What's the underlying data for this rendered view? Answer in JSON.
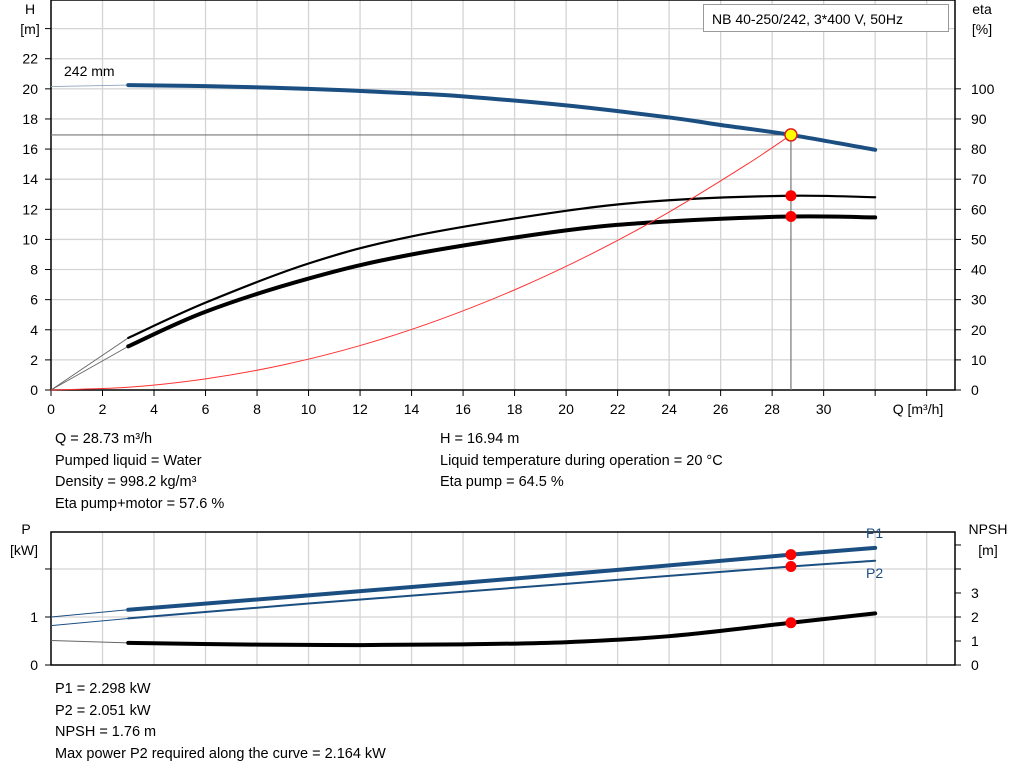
{
  "chart_data": [
    {
      "type": "line",
      "title": "NB 40-250/242, 3*400 V, 50Hz",
      "xlabel": "Q [m³/h]",
      "ylabel": "H\n[m]",
      "ylabel_parts": [
        "H",
        "[m]"
      ],
      "y2label_parts": [
        "eta",
        "[%]"
      ],
      "xlim": [
        0,
        35.1
      ],
      "ylim": [
        0,
        25.9
      ],
      "y2lim": [
        0,
        129.5
      ],
      "x_ticks": [
        0,
        2,
        4,
        6,
        8,
        10,
        12,
        14,
        16,
        18,
        20,
        22,
        24,
        26,
        28,
        30
      ],
      "y_ticks": [
        0,
        2,
        4,
        6,
        8,
        10,
        12,
        14,
        16,
        18,
        20,
        22
      ],
      "y2_ticks": [
        0,
        10,
        20,
        30,
        40,
        50,
        60,
        70,
        80,
        90,
        100
      ],
      "grid": true,
      "annotation": "242 mm",
      "series": [
        {
          "role": "head",
          "axis": "H",
          "color": "#1b4f82",
          "x": [
            3,
            6,
            10,
            14,
            16,
            20,
            24,
            26,
            28.73,
            32
          ],
          "y": [
            20.25,
            20.18,
            20.0,
            19.7,
            19.5,
            18.9,
            18.1,
            17.6,
            16.94,
            15.95
          ],
          "ext_x": [
            0,
            3
          ],
          "ext_y": [
            20.15,
            20.25
          ]
        },
        {
          "role": "eta-pump",
          "axis": "eta",
          "color": "#000000",
          "x": [
            3,
            6,
            10,
            14,
            20,
            24,
            28.73,
            32
          ],
          "y": [
            17.3,
            29,
            42,
            51,
            59.5,
            63,
            64.5,
            64
          ],
          "ext_x": [
            0,
            3
          ],
          "ext_y": [
            0,
            17.3
          ]
        },
        {
          "role": "eta-pump-motor",
          "axis": "eta",
          "color": "#000000",
          "x": [
            3,
            6,
            10,
            14,
            20,
            24,
            28.73,
            32
          ],
          "y": [
            14.5,
            26,
            37,
            45,
            53,
            56,
            57.6,
            57.3
          ],
          "ext_x": [
            0,
            3
          ],
          "ext_y": [
            0,
            14.5
          ]
        },
        {
          "role": "system-curve",
          "axis": "H",
          "color": "#ff3030",
          "x": [
            0,
            3,
            6,
            9,
            12,
            15,
            18,
            21,
            24,
            27,
            28.73
          ],
          "y": [
            0,
            0.18,
            0.74,
            1.66,
            2.95,
            4.62,
            6.65,
            9.05,
            11.82,
            14.96,
            16.94
          ]
        }
      ],
      "duty_point": {
        "Q": 28.73,
        "H": 16.94,
        "eta_pump": 64.5,
        "eta_pump_motor": 57.6,
        "color": "#ffff00"
      }
    },
    {
      "type": "line",
      "ylabel_parts": [
        "P",
        "[kW]"
      ],
      "y2label_parts": [
        "NPSH",
        "[m]"
      ],
      "xlim": [
        0,
        35.1
      ],
      "ylim": [
        0,
        2.77
      ],
      "y2lim": [
        0,
        5.54
      ],
      "y_ticks": [
        0,
        1,
        2
      ],
      "y_tick_labels": [
        "0",
        "1",
        ""
      ],
      "y2_ticks": [
        0,
        1,
        2,
        3,
        4,
        5
      ],
      "y2_tick_labels": [
        "0",
        "1",
        "2",
        "3",
        "",
        ""
      ],
      "grid": true,
      "series": [
        {
          "name": "P1",
          "axis": "P",
          "color": "#1b4f82",
          "x": [
            3,
            10,
            20,
            28.73,
            32
          ],
          "y": [
            1.15,
            1.45,
            1.89,
            2.298,
            2.44
          ],
          "ext_x": [
            0,
            3
          ],
          "ext_y": [
            1.0,
            1.15
          ]
        },
        {
          "name": "P2",
          "axis": "P",
          "color": "#1b4f82",
          "x": [
            3,
            10,
            20,
            28.73,
            32
          ],
          "y": [
            0.97,
            1.28,
            1.69,
            2.051,
            2.17
          ],
          "ext_x": [
            0,
            3
          ],
          "ext_y": [
            0.82,
            0.97
          ]
        },
        {
          "role": "npsh",
          "axis": "NPSH",
          "color": "#000000",
          "x": [
            3,
            8,
            12,
            16,
            20,
            24,
            28.73,
            32
          ],
          "y": [
            0.92,
            0.85,
            0.83,
            0.86,
            0.95,
            1.2,
            1.76,
            2.15
          ],
          "ext_x": [
            0,
            3
          ],
          "ext_y": [
            1.02,
            0.92
          ]
        }
      ],
      "duty_point": {
        "Q": 28.73,
        "P1": 2.298,
        "P2": 2.051,
        "NPSH": 1.76
      }
    }
  ],
  "info_top_left": [
    "Q = 28.73 m³/h",
    "Pumped liquid = Water",
    "Density = 998.2 kg/m³",
    "Eta pump+motor = 57.6 %"
  ],
  "info_top_right": [
    "H = 16.94 m",
    "Liquid temperature during operation = 20 °C",
    "Eta pump = 64.5 %"
  ],
  "info_bottom": [
    "P1 = 2.298 kW",
    "P2 = 2.051 kW",
    "NPSH = 1.76 m",
    "Max power P2 required along the curve = 2.164 kW"
  ]
}
